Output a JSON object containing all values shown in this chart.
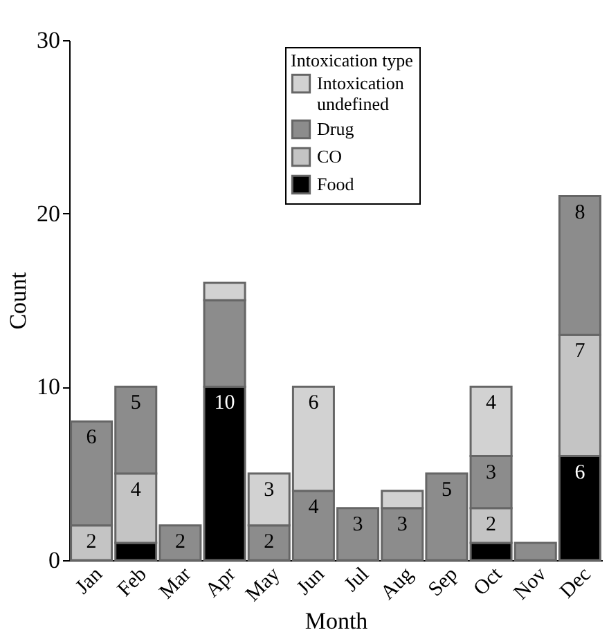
{
  "chart_data": {
    "type": "bar",
    "stacked": true,
    "xlabel": "Month",
    "ylabel": "Count",
    "legend_title": "Intoxication type",
    "legend": "top right",
    "categories": [
      "Jan",
      "Feb",
      "Mar",
      "Apr",
      "May",
      "Jun",
      "Jul",
      "Aug",
      "Sep",
      "Oct",
      "Nov",
      "Dec"
    ],
    "ylim": [
      0,
      30
    ],
    "yticks": [
      0,
      10,
      20,
      30
    ],
    "grid": false,
    "series": [
      {
        "name": "Food",
        "color": "#000000",
        "values": [
          null,
          1,
          null,
          10,
          null,
          null,
          null,
          null,
          null,
          1,
          null,
          6
        ],
        "value_labels": [
          null,
          null,
          null,
          "10",
          null,
          null,
          null,
          null,
          null,
          null,
          null,
          "6"
        ]
      },
      {
        "name": "CO",
        "color": "#c4c4c4",
        "values": [
          2,
          4,
          null,
          null,
          null,
          null,
          null,
          null,
          null,
          2,
          null,
          7
        ],
        "value_labels": [
          "2",
          "4",
          null,
          null,
          null,
          null,
          null,
          null,
          null,
          "2",
          null,
          "7"
        ]
      },
      {
        "name": "Drug",
        "color": "#8c8c8c",
        "values": [
          6,
          5,
          2,
          5,
          2,
          4,
          3,
          3,
          5,
          3,
          1,
          8
        ],
        "value_labels": [
          "6",
          "5",
          "2",
          null,
          "2",
          "4",
          "3",
          "3",
          "5",
          "3",
          null,
          "8"
        ]
      },
      {
        "name": "Intoxication undefined",
        "color": "#d2d2d2",
        "values": [
          null,
          null,
          null,
          1,
          3,
          6,
          null,
          1,
          null,
          4,
          null,
          null
        ],
        "value_labels": [
          null,
          null,
          null,
          null,
          "3",
          "6",
          null,
          null,
          null,
          "4",
          null,
          null
        ]
      }
    ]
  }
}
